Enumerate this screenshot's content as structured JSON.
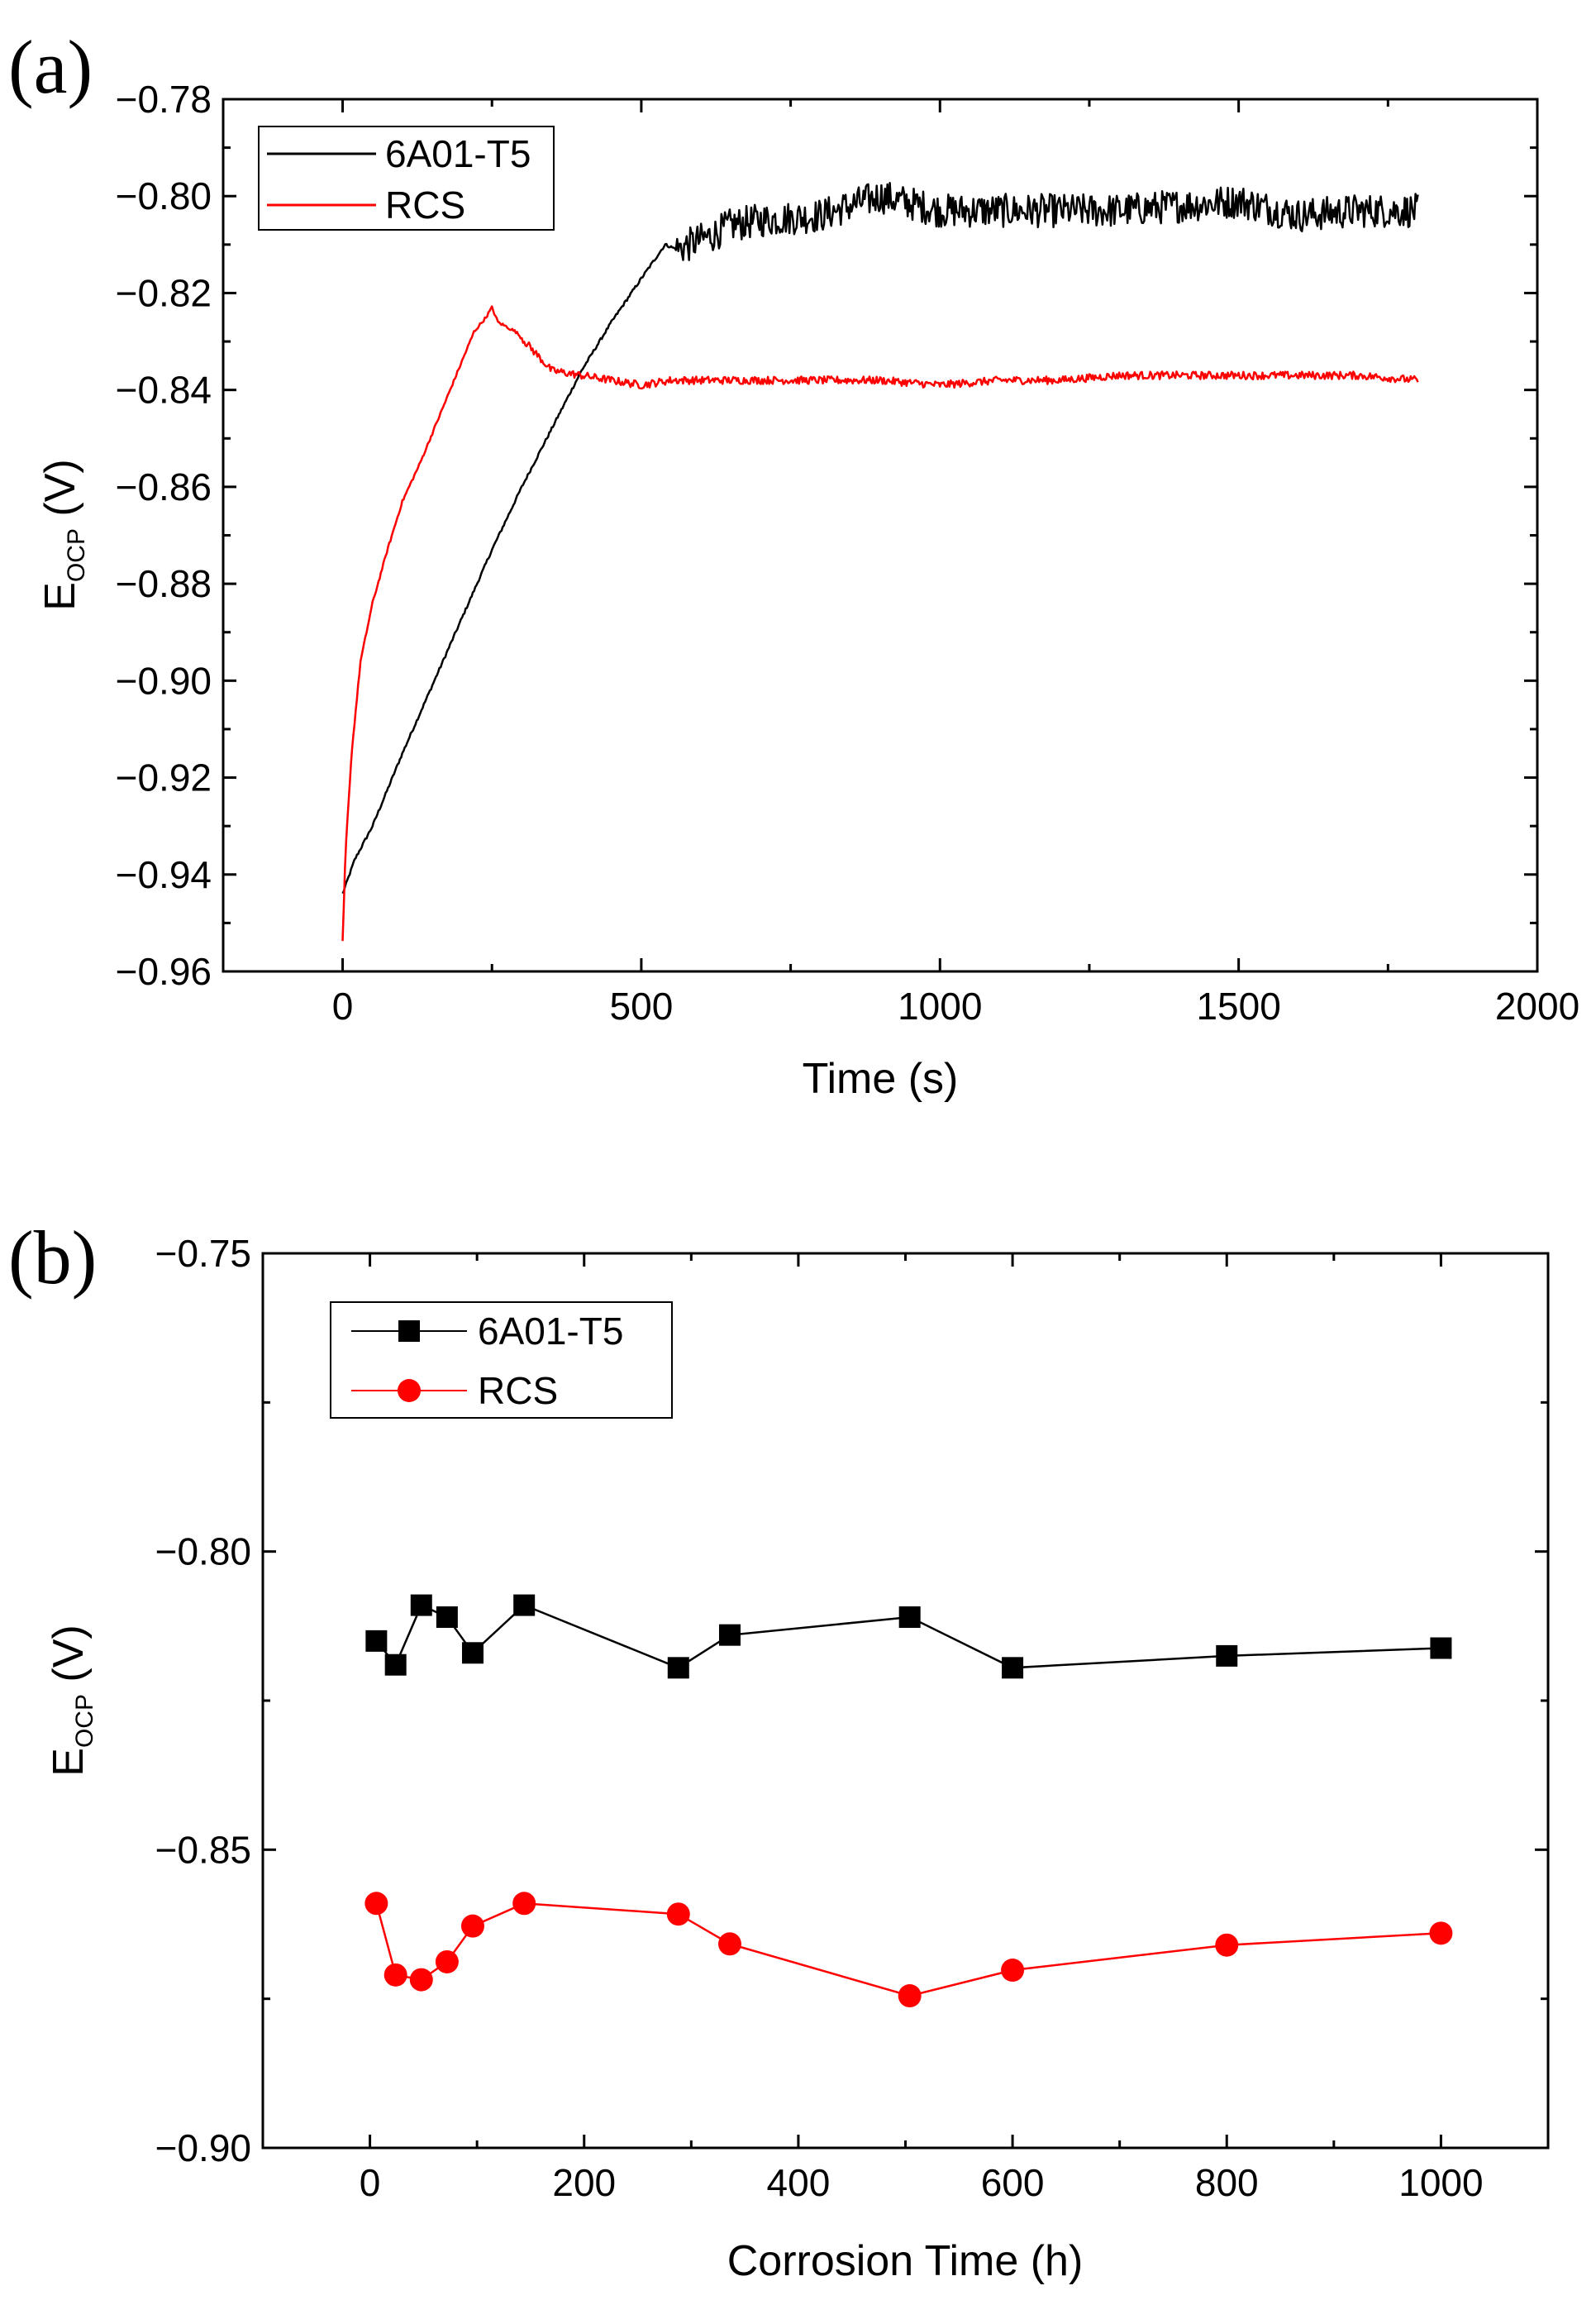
{
  "chart_data": [
    {
      "panel": "(a)",
      "type": "line",
      "title": "",
      "xlabel": "Time (s)",
      "ylabel": {
        "main": "E",
        "sub": "OCP",
        "unit": " (V)"
      },
      "xlim": [
        -200,
        2000
      ],
      "ylim": [
        -0.96,
        -0.78
      ],
      "xticks": [
        0,
        500,
        1000,
        1500,
        2000
      ],
      "xtick_labels": [
        "0",
        "500",
        "1000",
        "1500",
        "2000"
      ],
      "yticks": [
        -0.78,
        -0.8,
        -0.82,
        -0.84,
        -0.86,
        -0.88,
        -0.9,
        -0.92,
        -0.94,
        -0.96
      ],
      "ytick_labels": [
        "−0.78",
        "−0.80",
        "−0.82",
        "−0.84",
        "−0.86",
        "−0.88",
        "−0.90",
        "−0.92",
        "−0.94",
        "−0.96"
      ],
      "legend_position": "top-left",
      "series": [
        {
          "name": "6A01-T5",
          "color": "#000000",
          "noise": 0.0035,
          "x": [
            0,
            20,
            50,
            100,
            150,
            200,
            250,
            300,
            350,
            400,
            450,
            500,
            540,
            560,
            580,
            620,
            650,
            700,
            800,
            900,
            1000,
            1100,
            1200,
            1300,
            1400,
            1500,
            1600,
            1700,
            1800
          ],
          "y": [
            -0.944,
            -0.937,
            -0.93,
            -0.915,
            -0.901,
            -0.887,
            -0.873,
            -0.86,
            -0.848,
            -0.836,
            -0.826,
            -0.817,
            -0.81,
            -0.811,
            -0.81,
            -0.808,
            -0.806,
            -0.805,
            -0.804,
            -0.8,
            -0.803,
            -0.803,
            -0.803,
            -0.803,
            -0.802,
            -0.801,
            -0.804,
            -0.803,
            -0.803
          ],
          "noise_from": 560
        },
        {
          "name": "RCS",
          "color": "#ff0000",
          "noise": 0.0008,
          "x": [
            0,
            5,
            15,
            30,
            50,
            75,
            100,
            130,
            160,
            190,
            220,
            240,
            250,
            260,
            290,
            320,
            350,
            400,
            450,
            500,
            550,
            600,
            700,
            800,
            900,
            1000,
            1100,
            1200,
            1300,
            1400,
            1500,
            1600,
            1700,
            1800
          ],
          "y": [
            -0.954,
            -0.935,
            -0.915,
            -0.896,
            -0.884,
            -0.873,
            -0.863,
            -0.855,
            -0.846,
            -0.837,
            -0.828,
            -0.825,
            -0.823,
            -0.826,
            -0.828,
            -0.832,
            -0.836,
            -0.837,
            -0.838,
            -0.839,
            -0.838,
            -0.838,
            -0.838,
            -0.838,
            -0.838,
            -0.839,
            -0.838,
            -0.838,
            -0.837,
            -0.837,
            -0.837,
            -0.837,
            -0.837,
            -0.838
          ],
          "noise_from": 300
        }
      ]
    },
    {
      "panel": "(b)",
      "type": "line",
      "title": "",
      "xlabel": "Corrosion Time (h)",
      "ylabel": {
        "main": "E",
        "sub": "OCP",
        "unit": " (V)"
      },
      "xlim": [
        -100,
        1100
      ],
      "ylim": [
        -0.9,
        -0.75
      ],
      "xticks": [
        0,
        200,
        400,
        600,
        800,
        1000
      ],
      "xtick_labels": [
        "0",
        "200",
        "400",
        "600",
        "800",
        "1000"
      ],
      "yticks": [
        -0.75,
        -0.8,
        -0.85,
        -0.9
      ],
      "ytick_labels": [
        "−0.75",
        "−0.80",
        "−0.85",
        "−0.90"
      ],
      "legend_position": "top-left",
      "series": [
        {
          "name": "6A01-T5",
          "color": "#000000",
          "marker": "square",
          "x": [
            6,
            24,
            48,
            72,
            96,
            144,
            288,
            336,
            504,
            600,
            800,
            1000
          ],
          "y": [
            -0.815,
            -0.819,
            -0.809,
            -0.811,
            -0.817,
            -0.809,
            -0.8195,
            -0.814,
            -0.811,
            -0.8195,
            -0.8175,
            -0.8162
          ]
        },
        {
          "name": "RCS",
          "color": "#ff0000",
          "marker": "circle",
          "x": [
            6,
            24,
            48,
            72,
            96,
            144,
            288,
            336,
            504,
            600,
            800,
            1000
          ],
          "y": [
            -0.859,
            -0.871,
            -0.8718,
            -0.8688,
            -0.8628,
            -0.859,
            -0.8608,
            -0.8658,
            -0.8745,
            -0.8702,
            -0.866,
            -0.864
          ]
        }
      ]
    }
  ]
}
